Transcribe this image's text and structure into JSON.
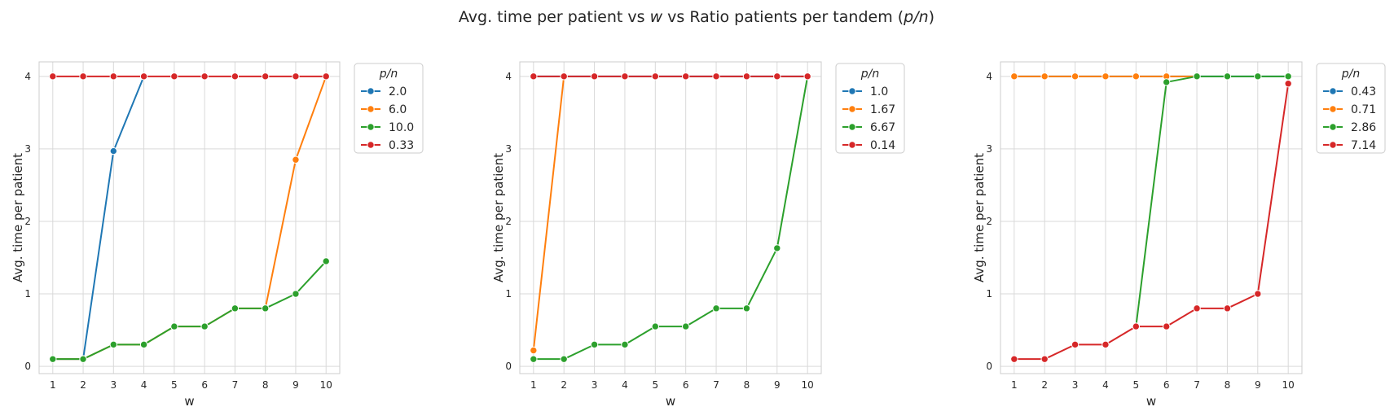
{
  "figure": {
    "title_pre": "Avg. time per patient vs ",
    "title_w": "w",
    "title_mid": " vs Ratio patients per tandem (",
    "title_ratio": "p/n",
    "title_post": ")"
  },
  "colors": {
    "blue": "#1f77b4",
    "orange": "#ff7f0e",
    "green": "#2ca02c",
    "red": "#d62728",
    "grid": "#d9d9d9",
    "frame": "#cccccc",
    "text": "#262626"
  },
  "chart_data": [
    {
      "type": "line",
      "xlabel": "w",
      "ylabel": "Avg. time per patient",
      "xticks": [
        "1",
        "2",
        "3",
        "4",
        "5",
        "6",
        "7",
        "8",
        "9",
        "10"
      ],
      "yticks": [
        "0",
        "1",
        "2",
        "3",
        "4"
      ],
      "xlim": [
        0.55,
        10.45
      ],
      "ylim": [
        -0.1,
        4.2
      ],
      "grid": true,
      "legend_title": "p/n",
      "legend_placement": "outside-top-right",
      "series": [
        {
          "name": "2.0",
          "color": "#1f77b4",
          "x": [
            1,
            2,
            3,
            4
          ],
          "y": [
            0.1,
            0.1,
            2.97,
            4.0
          ]
        },
        {
          "name": "6.0",
          "color": "#ff7f0e",
          "x": [
            1,
            2,
            3,
            4,
            5,
            6,
            7,
            8,
            9,
            10
          ],
          "y": [
            0.1,
            0.1,
            0.3,
            0.3,
            0.55,
            0.55,
            0.8,
            0.8,
            2.85,
            4.0
          ]
        },
        {
          "name": "10.0",
          "color": "#2ca02c",
          "x": [
            1,
            2,
            3,
            4,
            5,
            6,
            7,
            8,
            9,
            10
          ],
          "y": [
            0.1,
            0.1,
            0.3,
            0.3,
            0.55,
            0.55,
            0.8,
            0.8,
            1.0,
            1.45
          ]
        },
        {
          "name": "0.33",
          "color": "#d62728",
          "x": [
            1,
            2,
            3,
            4,
            5,
            6,
            7,
            8,
            9,
            10
          ],
          "y": [
            4,
            4,
            4,
            4,
            4,
            4,
            4,
            4,
            4,
            4
          ]
        }
      ]
    },
    {
      "type": "line",
      "xlabel": "w",
      "ylabel": "Avg. time per patient",
      "xticks": [
        "1",
        "2",
        "3",
        "4",
        "5",
        "6",
        "7",
        "8",
        "9",
        "10"
      ],
      "yticks": [
        "0",
        "1",
        "2",
        "3",
        "4"
      ],
      "xlim": [
        0.55,
        10.45
      ],
      "ylim": [
        -0.1,
        4.2
      ],
      "grid": true,
      "legend_title": "p/n",
      "legend_placement": "outside-top-right",
      "series": [
        {
          "name": "1.0",
          "color": "#1f77b4",
          "x": [
            1,
            2,
            3,
            4,
            5,
            6,
            7,
            8,
            9,
            10
          ],
          "y": [
            4,
            4,
            4,
            4,
            4,
            4,
            4,
            4,
            4,
            4
          ]
        },
        {
          "name": "1.67",
          "color": "#ff7f0e",
          "x": [
            1,
            2
          ],
          "y": [
            0.22,
            4.0
          ]
        },
        {
          "name": "6.67",
          "color": "#2ca02c",
          "x": [
            1,
            2,
            3,
            4,
            5,
            6,
            7,
            8,
            9,
            10
          ],
          "y": [
            0.1,
            0.1,
            0.3,
            0.3,
            0.55,
            0.55,
            0.8,
            0.8,
            1.63,
            4.0
          ]
        },
        {
          "name": "0.14",
          "color": "#d62728",
          "x": [
            1,
            2,
            3,
            4,
            5,
            6,
            7,
            8,
            9,
            10
          ],
          "y": [
            4,
            4,
            4,
            4,
            4,
            4,
            4,
            4,
            4,
            4
          ]
        }
      ]
    },
    {
      "type": "line",
      "xlabel": "w",
      "ylabel": "Avg. time per patient",
      "xticks": [
        "1",
        "2",
        "3",
        "4",
        "5",
        "6",
        "7",
        "8",
        "9",
        "10"
      ],
      "yticks": [
        "0",
        "1",
        "2",
        "3",
        "4"
      ],
      "xlim": [
        0.55,
        10.45
      ],
      "ylim": [
        -0.1,
        4.2
      ],
      "grid": true,
      "legend_title": "p/n",
      "legend_placement": "outside-top-right",
      "series": [
        {
          "name": "0.43",
          "color": "#1f77b4",
          "x": [
            1,
            2,
            3,
            4,
            5,
            6,
            7,
            8,
            9,
            10
          ],
          "y": [
            4,
            4,
            4,
            4,
            4,
            4,
            4,
            4,
            4,
            4
          ]
        },
        {
          "name": "0.71",
          "color": "#ff7f0e",
          "x": [
            1,
            2,
            3,
            4,
            5,
            6,
            7
          ],
          "y": [
            4,
            4,
            4,
            4,
            4,
            4,
            4
          ]
        },
        {
          "name": "2.86",
          "color": "#2ca02c",
          "x": [
            5,
            6,
            7,
            8,
            9,
            10
          ],
          "y": [
            0.55,
            3.92,
            4,
            4,
            4,
            4
          ]
        },
        {
          "name": "7.14",
          "color": "#d62728",
          "x": [
            1,
            2,
            3,
            4,
            5,
            6,
            7,
            8,
            9,
            10
          ],
          "y": [
            0.1,
            0.1,
            0.3,
            0.3,
            0.55,
            0.55,
            0.8,
            0.8,
            1.0,
            3.9
          ]
        }
      ]
    }
  ]
}
